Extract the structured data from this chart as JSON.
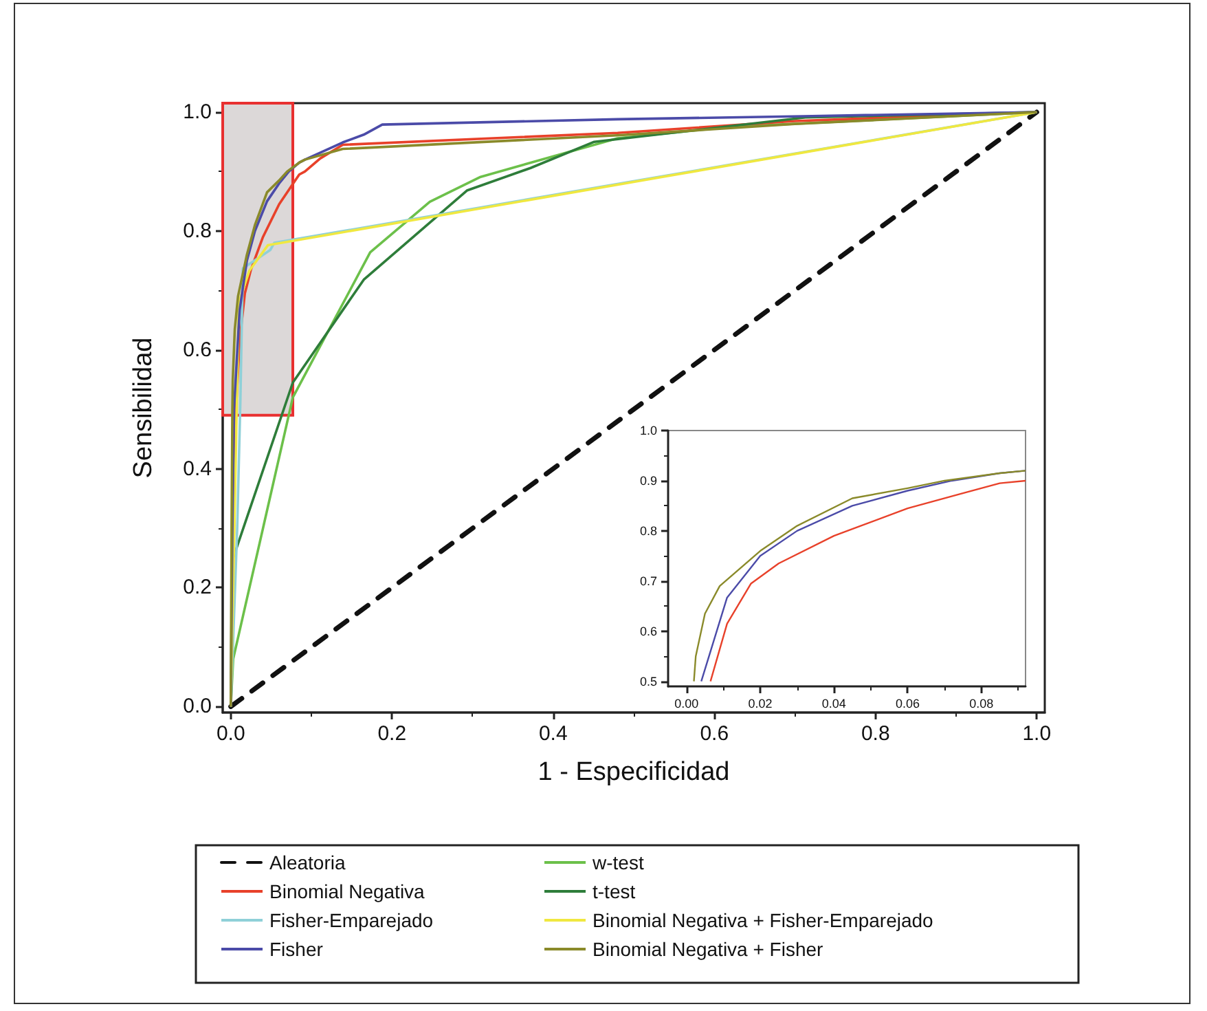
{
  "chart_data": [
    {
      "type": "line",
      "xlabel": "1 - Especificidad",
      "ylabel": "Sensibilidad",
      "xlim": [
        -0.01,
        1.01
      ],
      "ylim": [
        -0.01,
        1.015
      ],
      "xticks": [
        {
          "value": 0,
          "label": "0.0"
        },
        {
          "value": 0.2,
          "label": "0.2"
        },
        {
          "value": 0.4,
          "label": "0.4"
        },
        {
          "value": 0.6,
          "label": "0.6"
        },
        {
          "value": 0.8,
          "label": "0.8"
        },
        {
          "value": 1,
          "label": "1.0"
        }
      ],
      "yticks": [
        {
          "value": 0,
          "label": "0.0"
        },
        {
          "value": 0.2,
          "label": "0.2"
        },
        {
          "value": 0.4,
          "label": "0.4"
        },
        {
          "value": 0.6,
          "label": "0.6"
        },
        {
          "value": 0.8,
          "label": "0.8"
        },
        {
          "value": 1,
          "label": "1.0"
        }
      ],
      "grid": false,
      "legend": "bottom",
      "marker": "none",
      "line_style": "solid",
      "bands": [
        {
          "axis": "x",
          "from": -0.01,
          "to": 0.077,
          "color": "#dcd8d8"
        }
      ],
      "series": [
        {
          "name": "Aleatoria",
          "color": "#111111",
          "line_style": "dashed",
          "x": [
            0,
            1
          ],
          "values": [
            0,
            1
          ]
        },
        {
          "name": "w-test",
          "color": "#6cc04a",
          "x": [
            0,
            0.003,
            0.04,
            0.077,
            0.173,
            0.247,
            0.31,
            0.48,
            0.62,
            1
          ],
          "values": [
            0,
            0.08,
            0.3,
            0.52,
            0.764,
            0.849,
            0.891,
            0.956,
            0.975,
            1
          ]
        },
        {
          "name": "Binomial Negativa",
          "color": "#e8412a",
          "x": [
            0,
            0.004,
            0.0065,
            0.011,
            0.0175,
            0.025,
            0.04,
            0.06,
            0.075,
            0.085,
            0.092,
            0.111,
            0.139,
            0.48,
            0.7,
            1
          ],
          "values": [
            0,
            0.3,
            0.5,
            0.615,
            0.695,
            0.735,
            0.79,
            0.845,
            0.875,
            0.895,
            0.9,
            0.922,
            0.945,
            0.965,
            0.985,
            1
          ]
        },
        {
          "name": "t-test",
          "color": "#2e7d3a",
          "x": [
            0,
            0.003,
            0.077,
            0.165,
            0.293,
            0.372,
            0.451,
            0.713,
            1
          ],
          "values": [
            0,
            0.25,
            0.545,
            0.718,
            0.868,
            0.906,
            0.95,
            0.991,
            1
          ]
        },
        {
          "name": "Fisher-Emparejado",
          "color": "#8fd0d8",
          "x": [
            0,
            0.008,
            0.012,
            0.015,
            0.049,
            0.054,
            1
          ],
          "values": [
            0,
            0.3,
            0.518,
            0.737,
            0.768,
            0.78,
            1
          ]
        },
        {
          "name": "Binomial Negativa + Fisher-Emparejado",
          "color": "#f0e840",
          "x": [
            0,
            0.01,
            0.023,
            0.046,
            1
          ],
          "values": [
            0,
            0.68,
            0.733,
            0.776,
            1
          ]
        },
        {
          "name": "Fisher",
          "color": "#4b4ba8",
          "x": [
            0,
            0.002,
            0.004,
            0.011,
            0.02,
            0.03,
            0.045,
            0.06,
            0.072,
            0.085,
            0.092,
            0.139,
            0.165,
            0.188,
            0.48,
            0.71,
            1
          ],
          "values": [
            0,
            0.3,
            0.5,
            0.667,
            0.75,
            0.8,
            0.85,
            0.88,
            0.9,
            0.915,
            0.92,
            0.949,
            0.962,
            0.979,
            0.988,
            0.993,
            1
          ]
        },
        {
          "name": "Binomial Negativa + Fisher",
          "color": "#8a8a2a",
          "x": [
            0,
            0.001,
            0.002,
            0.0025,
            0.005,
            0.009,
            0.02,
            0.03,
            0.045,
            0.06,
            0.07,
            0.085,
            0.092,
            0.139,
            0.48,
            0.7,
            1
          ],
          "values": [
            0,
            0.3,
            0.5,
            0.55,
            0.635,
            0.69,
            0.76,
            0.81,
            0.865,
            0.885,
            0.9,
            0.915,
            0.92,
            0.938,
            0.961,
            0.98,
            1
          ]
        }
      ]
    },
    {
      "type": "line",
      "xlim": [
        -0.005,
        0.092
      ],
      "ylim": [
        0.49,
        1.0
      ],
      "xticks": [
        {
          "value": 0,
          "label": "0.00"
        },
        {
          "value": 0.02,
          "label": "0.02"
        },
        {
          "value": 0.04,
          "label": "0.04"
        },
        {
          "value": 0.06,
          "label": "0.06"
        },
        {
          "value": 0.08,
          "label": "0.08"
        }
      ],
      "yticks": [
        {
          "value": 0.5,
          "label": "0.5"
        },
        {
          "value": 0.6,
          "label": "0.6"
        },
        {
          "value": 0.7,
          "label": "0.7"
        },
        {
          "value": 0.8,
          "label": "0.8"
        },
        {
          "value": 0.9,
          "label": "0.9"
        },
        {
          "value": 1,
          "label": "1.0"
        }
      ],
      "grid": false,
      "marker": "none",
      "series": [
        {
          "color": "#e8412a",
          "x": [
            0.0065,
            0.011,
            0.0175,
            0.025,
            0.04,
            0.06,
            0.075,
            0.085,
            0.092
          ],
          "values": [
            0.5,
            0.615,
            0.695,
            0.735,
            0.79,
            0.845,
            0.875,
            0.895,
            0.9
          ]
        },
        {
          "color": "#4b4ba8",
          "x": [
            0.004,
            0.011,
            0.02,
            0.03,
            0.045,
            0.06,
            0.072,
            0.085,
            0.092
          ],
          "values": [
            0.5,
            0.667,
            0.75,
            0.8,
            0.85,
            0.88,
            0.9,
            0.915,
            0.92
          ]
        },
        {
          "color": "#8a8a2a",
          "x": [
            0.002,
            0.0025,
            0.005,
            0.009,
            0.02,
            0.03,
            0.045,
            0.06,
            0.07,
            0.085,
            0.092
          ],
          "values": [
            0.5,
            0.55,
            0.635,
            0.69,
            0.76,
            0.81,
            0.865,
            0.885,
            0.9,
            0.915,
            0.92
          ]
        }
      ]
    }
  ]
}
